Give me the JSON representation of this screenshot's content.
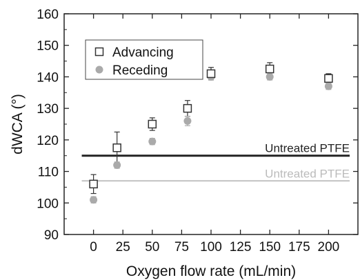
{
  "chart_data": {
    "type": "scatter",
    "title": "",
    "xlabel": "Oxygen flow rate (mL/min)",
    "ylabel": "dWCA (°)",
    "xlim": [
      -25,
      225
    ],
    "ylim": [
      90,
      160
    ],
    "xticks": [
      0,
      25,
      50,
      75,
      100,
      125,
      150,
      175,
      200
    ],
    "yticks": [
      90,
      100,
      110,
      120,
      130,
      140,
      150,
      160
    ],
    "grid": false,
    "legend_position": "top-left",
    "series": [
      {
        "name": "Advancing",
        "marker": "open-square",
        "color": "#333333",
        "x": [
          0,
          20,
          50,
          80,
          100,
          150,
          200
        ],
        "y": [
          106,
          117.5,
          125,
          130,
          141,
          142.5,
          139.5
        ],
        "err": [
          3,
          5,
          2,
          2.5,
          2,
          2,
          1.5
        ]
      },
      {
        "name": "Receding",
        "marker": "filled-circle",
        "color": "#aaaaaa",
        "x": [
          0,
          20,
          50,
          80,
          100,
          150,
          200
        ],
        "y": [
          101,
          112,
          119.5,
          126,
          140,
          140,
          137
        ],
        "err": [
          1,
          1,
          1,
          1.5,
          1,
          1,
          1
        ]
      }
    ],
    "reference_lines": [
      {
        "label": "Untreated PTFE",
        "y": 115,
        "color": "#222222"
      },
      {
        "label": "Untreated PTFE",
        "y": 107,
        "color": "#bbbbbb"
      }
    ]
  }
}
